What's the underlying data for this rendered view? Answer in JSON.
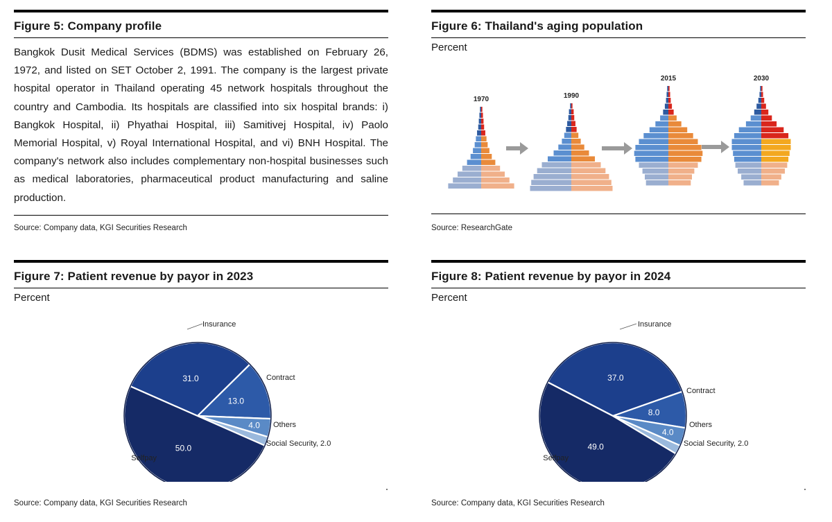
{
  "fig5": {
    "title": "Figure 5: Company profile",
    "body": "Bangkok Dusit Medical Services (BDMS) was established on February 26, 1972, and listed on SET October 2, 1991. The company is the largest private hospital operator in Thailand operating 45 network hospitals throughout the country and Cambodia. Its hospitals are classified into six hospital brands: i) Bangkok Hospital, ii) Phyathai Hospital, iii) Samitivej Hospital, iv) Paolo Memorial Hospital, v) Royal International Hospital, and vi) BNH Hospital. The company's network also includes complementary non-hospital businesses such as medical laboratories, pharmaceutical product manufacturing and saline production.",
    "source": "Source: Company data, KGI Securities Research"
  },
  "fig6": {
    "title": "Figure 6: Thailand's aging population",
    "unit": "Percent",
    "source": "Source: ResearchGate",
    "years": [
      "1970",
      "1990",
      "2015",
      "2030"
    ]
  },
  "fig7": {
    "title": "Figure 7: Patient revenue by payor in 2023",
    "unit": "Percent",
    "source": "Source: Company data, KGI Securities Research"
  },
  "fig8": {
    "title": "Figure 8: Patient revenue by payor in 2024",
    "unit": "Percent",
    "source": "Source: Company data, KGI Securities Research"
  },
  "colors": {
    "insurance": "#1c3f8c",
    "contract": "#2d5aa8",
    "others": "#5a8ac6",
    "social": "#9ab9dd",
    "selfpay": "#152a66",
    "pyr_left_light": "#9aaed0",
    "pyr_left_mid": "#5b8fd0",
    "pyr_left_dark": "#2d5aa0",
    "pyr_right_light": "#f0b08a",
    "pyr_right_mid": "#e98a3a",
    "pyr_right_red": "#d9261c",
    "pyr_right_yellow": "#f3a820"
  },
  "chart_data": [
    {
      "type": "pie",
      "title": "Patient revenue by payor in 2023",
      "categories": [
        "Insurance",
        "Contract",
        "Others",
        "Social Security",
        "Selfpay"
      ],
      "values": [
        31.0,
        13.0,
        4.0,
        2.0,
        50.0
      ],
      "labels": [
        "31.0",
        "13.0",
        "4.0",
        "Social Security, 2.0",
        "50.0"
      ]
    },
    {
      "type": "pie",
      "title": "Patient revenue by payor in 2024",
      "categories": [
        "Insurance",
        "Contract",
        "Others",
        "Social Security",
        "Selfpay"
      ],
      "values": [
        37.0,
        8.0,
        4.0,
        2.0,
        49.0
      ],
      "labels": [
        "37.0",
        "8.0",
        "4.0",
        "Social Security, 2.0",
        "49.0"
      ]
    }
  ]
}
